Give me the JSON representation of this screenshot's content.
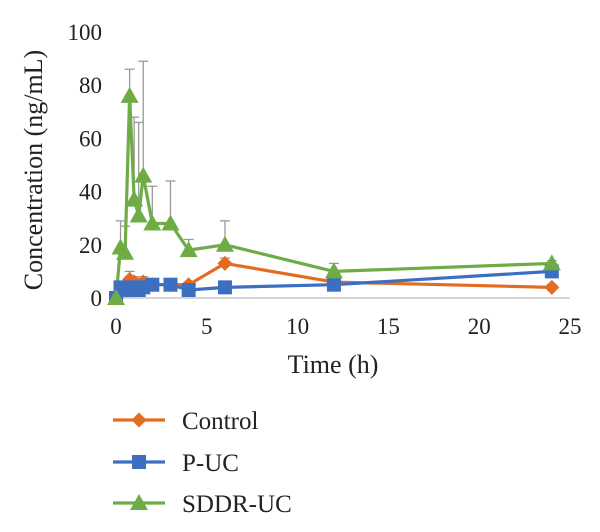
{
  "chart_data": {
    "type": "line",
    "xlabel": "Time (h)",
    "ylabel": "Concentration (ng/mL)",
    "xlim": [
      0,
      25
    ],
    "ylim": [
      0,
      100
    ],
    "xticks": [
      "0",
      "5",
      "10",
      "15",
      "20",
      "25"
    ],
    "yticks": [
      "0",
      "20",
      "40",
      "60",
      "80",
      "100"
    ],
    "grid": false,
    "legend_position": "bottom",
    "series": [
      {
        "name": "Control",
        "color": "#e46c22",
        "marker": "diamond",
        "x": [
          0,
          0.25,
          0.5,
          0.75,
          1,
          1.25,
          1.5,
          2,
          3,
          4,
          6,
          12,
          24
        ],
        "y": [
          0,
          2,
          4,
          7,
          6,
          5,
          6,
          5,
          5,
          5,
          13,
          6,
          4
        ],
        "error": [
          0,
          1,
          2,
          3,
          2,
          2,
          2,
          2,
          1,
          1,
          2,
          1,
          1
        ]
      },
      {
        "name": "P-UC",
        "color": "#3d6fc1",
        "marker": "square",
        "x": [
          0,
          0.25,
          0.5,
          0.75,
          1,
          1.25,
          1.5,
          2,
          3,
          4,
          6,
          12,
          24
        ],
        "y": [
          0,
          4,
          3,
          3,
          4,
          3,
          4,
          5,
          5,
          3,
          4,
          5,
          10
        ],
        "error": [
          0,
          1,
          1,
          1,
          1,
          1,
          1,
          1,
          1,
          1,
          1,
          1,
          1
        ]
      },
      {
        "name": "SDDR-UC",
        "color": "#6fac46",
        "marker": "triangle",
        "x": [
          0,
          0.25,
          0.5,
          0.75,
          1,
          1.25,
          1.5,
          2,
          3,
          4,
          6,
          12,
          24
        ],
        "y": [
          0,
          19,
          17,
          76,
          37,
          31,
          46,
          28,
          28,
          18,
          20,
          10,
          13
        ],
        "error": [
          0,
          10,
          10,
          10,
          31,
          35,
          43,
          14,
          16,
          4,
          9,
          3,
          1
        ]
      }
    ]
  }
}
